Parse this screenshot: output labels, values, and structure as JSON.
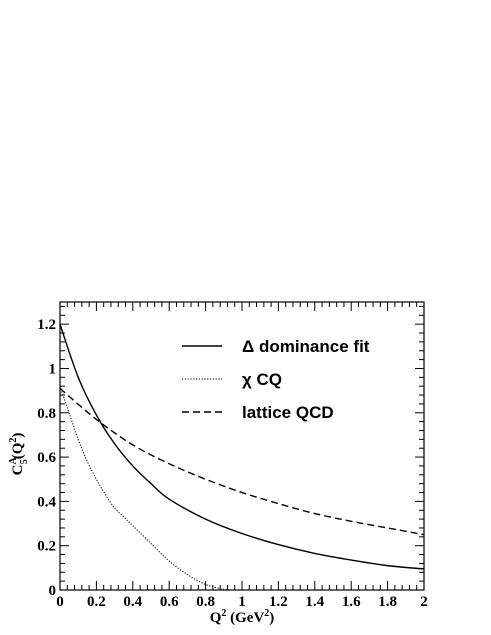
{
  "chart_data": {
    "type": "line",
    "xlabel": {
      "base": "Q",
      "sup": "2",
      "unit_pre": " (GeV",
      "unit_sup": "2",
      "unit_post": ")"
    },
    "ylabel": {
      "base": "C",
      "sup": "A",
      "sub": "5",
      "arg_pre": "(Q",
      "arg_sup": "2",
      "arg_post": ")"
    },
    "xlim": [
      0,
      2
    ],
    "ylim": [
      0,
      1.3
    ],
    "x_ticks": [
      0,
      0.2,
      0.4,
      0.6,
      0.8,
      1,
      1.2,
      1.4,
      1.6,
      1.8,
      2
    ],
    "x_tick_labels": [
      "0",
      "0.2",
      "0.4",
      "0.6",
      "0.8",
      "1",
      "1.2",
      "1.4",
      "1.6",
      "1.8",
      "2"
    ],
    "y_ticks": [
      0,
      0.2,
      0.4,
      0.6,
      0.8,
      1,
      1.2
    ],
    "y_tick_labels": [
      "0",
      "0.2",
      "0.4",
      "0.6",
      "0.8",
      "1",
      "1.2"
    ],
    "grid": false,
    "legend_position": "top-right",
    "series": [
      {
        "name": "Δ dominance fit",
        "style": "solid",
        "x": [
          0,
          0.1,
          0.2,
          0.3,
          0.4,
          0.5,
          0.6,
          0.8,
          1.0,
          1.2,
          1.4,
          1.6,
          1.8,
          2.0
        ],
        "y": [
          1.2,
          0.96,
          0.79,
          0.66,
          0.56,
          0.48,
          0.41,
          0.32,
          0.255,
          0.205,
          0.165,
          0.135,
          0.11,
          0.095
        ]
      },
      {
        "name": "χ CQ",
        "style": "dotted",
        "x": [
          0,
          0.05,
          0.1,
          0.15,
          0.2,
          0.25,
          0.3,
          0.35,
          0.4,
          0.5,
          0.6,
          0.7,
          0.8,
          0.9,
          0.95
        ],
        "y": [
          0.92,
          0.8,
          0.68,
          0.58,
          0.5,
          0.43,
          0.37,
          0.33,
          0.29,
          0.21,
          0.13,
          0.07,
          0.025,
          0.003,
          0.0
        ]
      },
      {
        "name": "lattice QCD",
        "style": "dashed",
        "x": [
          0,
          0.2,
          0.4,
          0.6,
          0.8,
          1.0,
          1.2,
          1.4,
          1.6,
          1.8,
          2.0
        ],
        "y": [
          0.91,
          0.77,
          0.655,
          0.57,
          0.5,
          0.44,
          0.39,
          0.345,
          0.31,
          0.28,
          0.25
        ]
      }
    ]
  }
}
